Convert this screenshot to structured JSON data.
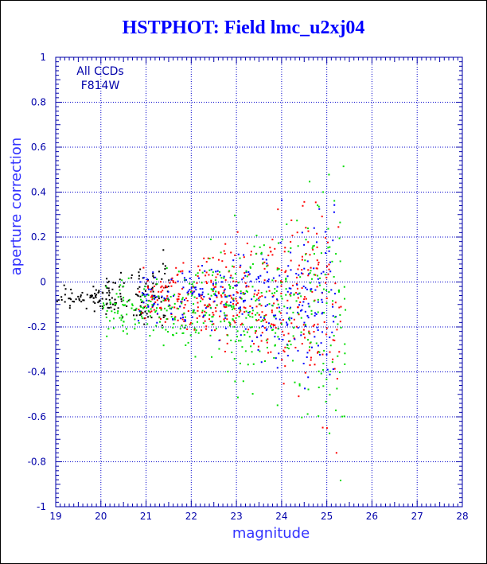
{
  "chart_data": {
    "type": "scatter",
    "title": "HSTPHOT: Field lmc_u2xj04",
    "xlabel": "magnitude",
    "ylabel": "aperture correction",
    "xlim": [
      19,
      28
    ],
    "ylim": [
      -1,
      1
    ],
    "xticks": [
      "19",
      "20",
      "21",
      "22",
      "23",
      "24",
      "25",
      "26",
      "27",
      "28"
    ],
    "yticks": [
      "-1",
      "-0.8",
      "-0.6",
      "-0.4",
      "-0.2",
      "0",
      "0.2",
      "0.4",
      "0.6",
      "0.8",
      "1"
    ],
    "grid": true,
    "annotations": [
      "All CCDs",
      "F814W"
    ],
    "colors": {
      "axis": "#0000aa",
      "grid": "#0000cc",
      "title": "#0000ff"
    },
    "series": [
      {
        "color": "#000000",
        "x_range": [
          19,
          21.5
        ],
        "center": -0.06,
        "sd": 0.04,
        "count": 170
      },
      {
        "color": "#ff0000",
        "x_range": [
          20.8,
          25.3
        ],
        "center": -0.06,
        "sd": 0.12,
        "count": 420
      },
      {
        "color": "#0000ff",
        "x_range": [
          20.8,
          25.2
        ],
        "center": -0.07,
        "sd": 0.11,
        "count": 300
      },
      {
        "color": "#00dd00",
        "x_range": [
          20.0,
          25.4
        ],
        "center": -0.11,
        "sd": 0.13,
        "count": 460
      }
    ]
  }
}
